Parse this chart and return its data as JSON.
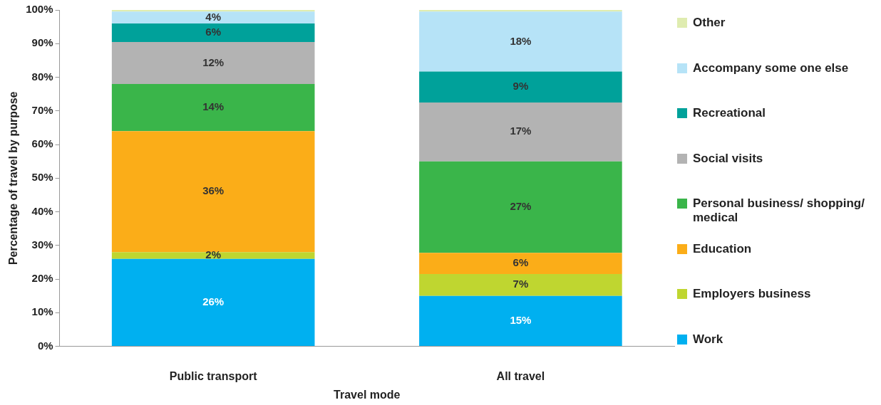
{
  "chart_data": {
    "type": "bar",
    "stacked": true,
    "xlabel": "Travel mode",
    "ylabel": "Percentage of travel by purpose",
    "categories": [
      "Public transport",
      "All travel"
    ],
    "series": [
      {
        "name": "Work",
        "color": "#00b0f0",
        "values": [
          26,
          15
        ],
        "value_labels": [
          "26%",
          "15%"
        ]
      },
      {
        "name": "Employers business",
        "color": "#bfd630",
        "values": [
          2,
          6.5
        ],
        "value_labels": [
          "2%",
          "7%"
        ]
      },
      {
        "name": "Education",
        "color": "#fbad18",
        "values": [
          36,
          6.3
        ],
        "value_labels": [
          "36%",
          "6%"
        ]
      },
      {
        "name": "Personal business/ shopping/ medical",
        "color": "#3ab54a",
        "values": [
          14,
          27.2
        ],
        "value_labels": [
          "14%",
          "27%"
        ]
      },
      {
        "name": "Social visits",
        "color": "#b3b3b3",
        "values": [
          12.5,
          17.5
        ],
        "value_labels": [
          "12%",
          "17%"
        ]
      },
      {
        "name": "Recreational",
        "color": "#00a19a",
        "values": [
          5.5,
          9.2
        ],
        "value_labels": [
          "6%",
          "9%"
        ]
      },
      {
        "name": "Accompany some one else",
        "color": "#b6e3f7",
        "values": [
          3.5,
          17.8
        ],
        "value_labels": [
          "4%",
          "18%"
        ]
      },
      {
        "name": "Other",
        "color": "#dfecb0",
        "values": [
          0.5,
          0.5
        ],
        "value_labels": [
          null,
          null
        ]
      }
    ],
    "ylim": [
      0,
      100
    ],
    "yticks": [
      {
        "value": 0,
        "label": "0%"
      },
      {
        "value": 10,
        "label": "10%"
      },
      {
        "value": 20,
        "label": "20%"
      },
      {
        "value": 30,
        "label": "30%"
      },
      {
        "value": 40,
        "label": "40%"
      },
      {
        "value": 50,
        "label": "50%"
      },
      {
        "value": 60,
        "label": "60%"
      },
      {
        "value": 70,
        "label": "70%"
      },
      {
        "value": 80,
        "label": "80%"
      },
      {
        "value": 90,
        "label": "90%"
      },
      {
        "value": 100,
        "label": "100%"
      }
    ],
    "grid": false,
    "legend": "right"
  }
}
